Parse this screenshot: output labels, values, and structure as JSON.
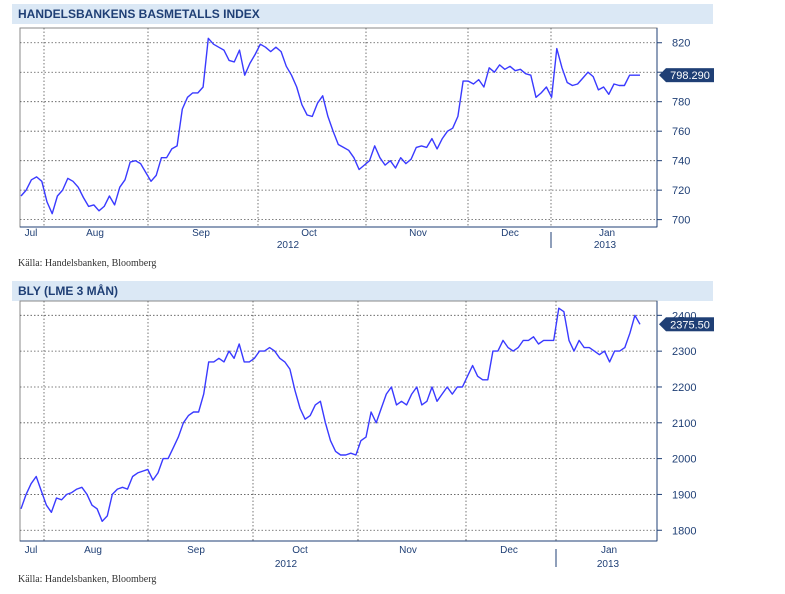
{
  "chart_data": [
    {
      "type": "line",
      "title": "HANDELSBANKENS BASMETALLS INDEX",
      "source": "Källa: Handelsbanken, Bloomberg",
      "x_tick_labels": [
        "Jul",
        "Aug",
        "Sep",
        "Oct",
        "Nov",
        "Dec",
        "Jan"
      ],
      "year_labels": [
        "2012",
        "2013"
      ],
      "ylim": [
        695,
        830
      ],
      "y_ticks": [
        700,
        720,
        740,
        760,
        780,
        800,
        820
      ],
      "last_value_label": "798.290",
      "line_color": "#3a3aff",
      "grid": true,
      "series": [
        {
          "values": [
            716,
            720,
            727,
            729,
            726,
            712,
            704,
            716,
            720,
            728,
            726,
            722,
            715,
            709,
            710,
            706,
            709,
            716,
            710,
            722,
            727,
            739,
            740,
            738,
            732,
            726,
            730,
            742,
            742,
            748,
            750,
            775,
            783,
            786,
            786,
            790,
            823,
            819,
            817,
            815,
            808,
            807,
            815,
            798,
            806,
            812,
            819,
            817,
            814,
            817,
            814,
            804,
            798,
            790,
            778,
            771,
            770,
            779,
            784,
            770,
            760,
            751,
            749,
            747,
            742,
            734,
            737,
            740,
            750,
            742,
            737,
            740,
            735,
            742,
            738,
            741,
            749,
            750,
            749,
            755,
            748,
            755,
            760,
            762,
            770,
            794,
            794,
            792,
            795,
            790,
            803,
            800,
            805,
            802,
            804,
            801,
            802,
            799,
            798,
            783,
            786,
            790,
            783,
            816,
            803,
            793,
            791,
            792,
            796,
            800,
            797,
            788,
            790,
            785,
            792,
            791,
            791,
            798,
            798,
            798
          ]
        }
      ]
    },
    {
      "type": "line",
      "title": "BLY (LME 3 MÅN)",
      "source": "Källa: Handelsbanken, Bloomberg",
      "x_tick_labels": [
        "Jul",
        "Aug",
        "Sep",
        "Oct",
        "Nov",
        "Dec",
        "Jan"
      ],
      "year_labels": [
        "2012",
        "2013"
      ],
      "ylim": [
        1770,
        2440
      ],
      "y_ticks": [
        1800,
        1900,
        2000,
        2100,
        2200,
        2300,
        2400
      ],
      "last_value_label": "2375.50",
      "line_color": "#3a3aff",
      "grid": true,
      "series": [
        {
          "values": [
            1860,
            1900,
            1930,
            1950,
            1910,
            1870,
            1850,
            1890,
            1885,
            1900,
            1905,
            1915,
            1920,
            1900,
            1870,
            1860,
            1825,
            1840,
            1900,
            1915,
            1920,
            1915,
            1950,
            1960,
            1965,
            1970,
            1940,
            1960,
            2000,
            2000,
            2030,
            2060,
            2100,
            2120,
            2130,
            2130,
            2180,
            2270,
            2270,
            2280,
            2270,
            2300,
            2280,
            2320,
            2270,
            2270,
            2280,
            2300,
            2300,
            2310,
            2300,
            2280,
            2270,
            2250,
            2190,
            2140,
            2110,
            2120,
            2150,
            2160,
            2100,
            2050,
            2020,
            2010,
            2010,
            2015,
            2010,
            2050,
            2060,
            2130,
            2100,
            2140,
            2180,
            2200,
            2150,
            2160,
            2150,
            2180,
            2200,
            2150,
            2160,
            2200,
            2160,
            2180,
            2200,
            2180,
            2200,
            2200,
            2230,
            2260,
            2230,
            2220,
            2220,
            2300,
            2300,
            2330,
            2310,
            2300,
            2310,
            2330,
            2330,
            2340,
            2320,
            2330,
            2330,
            2330,
            2420,
            2410,
            2330,
            2300,
            2330,
            2310,
            2310,
            2300,
            2290,
            2300,
            2270,
            2300,
            2300,
            2310,
            2350,
            2400,
            2375
          ]
        }
      ]
    }
  ]
}
